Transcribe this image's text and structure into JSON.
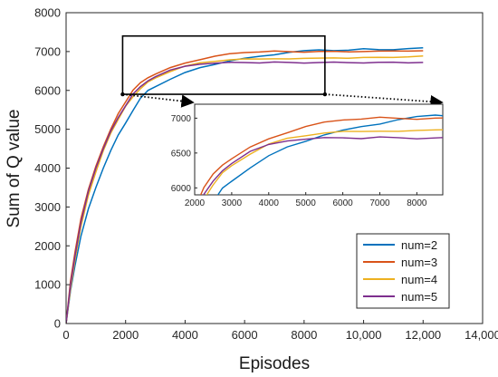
{
  "chart_data": {
    "type": "line",
    "title": "",
    "xlabel": "Episodes",
    "ylabel": "Sum of Q value",
    "xlim": [
      0,
      14000
    ],
    "ylim": [
      0,
      8000
    ],
    "x_ticks": [
      "0",
      "2000",
      "4000",
      "6000",
      "8000",
      "10,000",
      "12,000",
      "14,000"
    ],
    "y_ticks": [
      "0",
      "1000",
      "2000",
      "3000",
      "4000",
      "5000",
      "6000",
      "7000",
      "8000"
    ],
    "grid": false,
    "legend_position": "bottom-right",
    "series": [
      {
        "name": "num=2",
        "color": "#0072BD",
        "x": [
          0,
          150,
          300,
          500,
          750,
          1000,
          1250,
          1500,
          1750,
          2000,
          2250,
          2500,
          2750,
          3000,
          3500,
          4000,
          4500,
          5000,
          5500,
          6000,
          6500,
          7000,
          7500,
          8000,
          8500,
          9000,
          9500,
          10000,
          10500,
          11000,
          11500,
          12000
        ],
        "y": [
          0,
          850,
          1500,
          2250,
          2950,
          3500,
          4000,
          4450,
          4850,
          5150,
          5500,
          5800,
          5980,
          6100,
          6300,
          6450,
          6580,
          6680,
          6760,
          6820,
          6880,
          6920,
          6980,
          7020,
          7040,
          7030,
          7040,
          7060,
          7050,
          7060,
          7070,
          7080
        ]
      },
      {
        "name": "num=3",
        "color": "#D95319",
        "x": [
          0,
          150,
          300,
          500,
          750,
          1000,
          1250,
          1500,
          1750,
          2000,
          2250,
          2500,
          2750,
          3000,
          3500,
          4000,
          4500,
          5000,
          5500,
          6000,
          6500,
          7000,
          7500,
          8000,
          8500,
          9000,
          9500,
          10000,
          10500,
          11000,
          11500,
          12000
        ],
        "y": [
          0,
          1100,
          1850,
          2700,
          3450,
          4050,
          4550,
          5000,
          5400,
          5700,
          6000,
          6200,
          6330,
          6420,
          6580,
          6700,
          6800,
          6880,
          6930,
          6980,
          7000,
          7000,
          6990,
          7000,
          7000,
          6990,
          7000,
          7010,
          7000,
          7010,
          7020,
          7020
        ]
      },
      {
        "name": "num=4",
        "color": "#EDB120",
        "x": [
          0,
          150,
          300,
          500,
          750,
          1000,
          1250,
          1500,
          1750,
          2000,
          2250,
          2500,
          2750,
          3000,
          3500,
          4000,
          4500,
          5000,
          5500,
          6000,
          6500,
          7000,
          7500,
          8000,
          8500,
          9000,
          9500,
          10000,
          10500,
          11000,
          11500,
          12000
        ],
        "y": [
          0,
          900,
          1650,
          2500,
          3300,
          3900,
          4450,
          4900,
          5250,
          5580,
          5850,
          6050,
          6200,
          6320,
          6500,
          6620,
          6700,
          6760,
          6790,
          6800,
          6810,
          6820,
          6810,
          6820,
          6830,
          6840,
          6830,
          6840,
          6850,
          6860,
          6860,
          6870
        ]
      },
      {
        "name": "num=5",
        "color": "#7E2F8E",
        "x": [
          0,
          150,
          300,
          500,
          750,
          1000,
          1250,
          1500,
          1750,
          2000,
          2250,
          2500,
          2750,
          3000,
          3500,
          4000,
          4500,
          5000,
          5500,
          6000,
          6500,
          7000,
          7500,
          8000,
          8500,
          9000,
          9500,
          10000,
          10500,
          11000,
          11500,
          12000
        ],
        "y": [
          0,
          1000,
          1750,
          2600,
          3400,
          4000,
          4500,
          4950,
          5300,
          5600,
          5900,
          6100,
          6250,
          6350,
          6520,
          6620,
          6680,
          6700,
          6710,
          6720,
          6720,
          6720,
          6710,
          6720,
          6720,
          6710,
          6720,
          6720,
          6710,
          6720,
          6720,
          6720
        ]
      }
    ],
    "inset": {
      "xlim": [
        2000,
        8700
      ],
      "ylim": [
        5900,
        7200
      ],
      "x_ticks": [
        "2000",
        "3000",
        "4000",
        "5000",
        "6000",
        "7000",
        "8000"
      ],
      "y_ticks": [
        "6000",
        "6500",
        "7000"
      ],
      "zoom_region": {
        "x": [
          1900,
          8700
        ],
        "y": [
          5900,
          7400
        ]
      }
    }
  },
  "legend": {
    "entries": [
      "num=2",
      "num=3",
      "num=4",
      "num=5"
    ]
  }
}
